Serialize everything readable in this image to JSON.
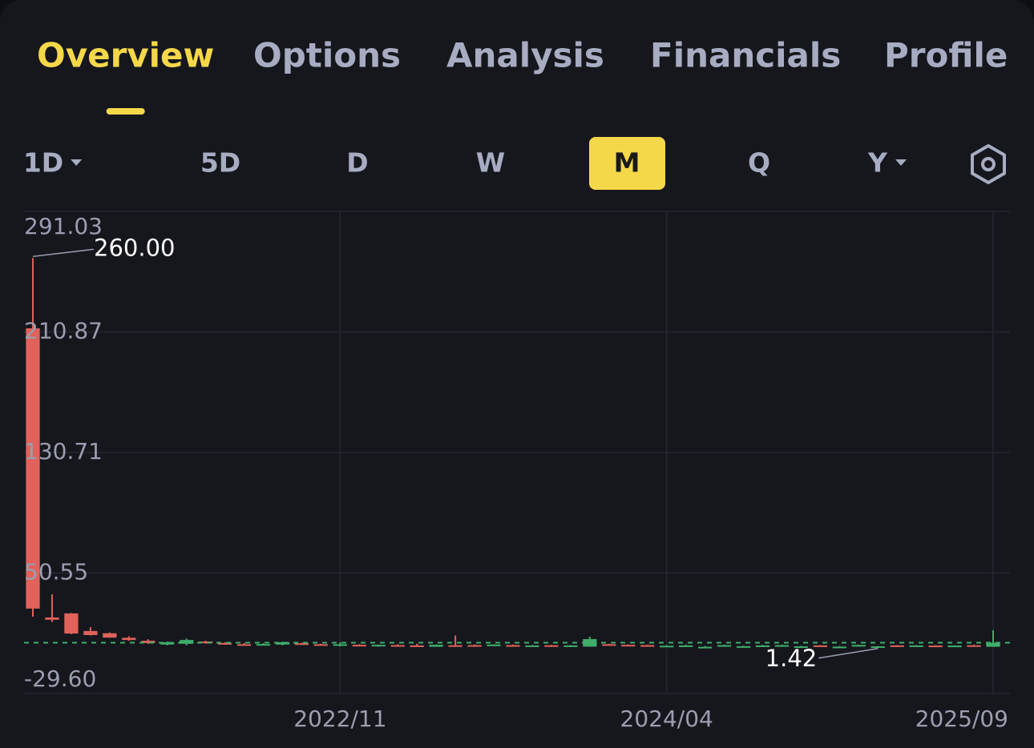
{
  "tabs": [
    "Overview",
    "Options",
    "Analysis",
    "Financials",
    "Profile"
  ],
  "active_tab": 0,
  "timeframes": [
    {
      "label": "1D",
      "dropdown": true
    },
    {
      "label": "5D",
      "dropdown": false
    },
    {
      "label": "D",
      "dropdown": false
    },
    {
      "label": "W",
      "dropdown": false
    },
    {
      "label": "M",
      "dropdown": false
    },
    {
      "label": "Q",
      "dropdown": false
    },
    {
      "label": "Y",
      "dropdown": true
    }
  ],
  "active_timeframe": 4,
  "chart_data": {
    "type": "candlestick",
    "categories": [
      null,
      null,
      null,
      null,
      null,
      null,
      null,
      null,
      null,
      null,
      null,
      null,
      null,
      null,
      null,
      null,
      "2022/11",
      null,
      null,
      null,
      null,
      null,
      null,
      null,
      null,
      null,
      null,
      null,
      null,
      null,
      null,
      null,
      null,
      "2024/04",
      null,
      null,
      null,
      null,
      null,
      null,
      null,
      null,
      null,
      null,
      null,
      null,
      null,
      null,
      null,
      null,
      "2025/09"
    ],
    "open": [
      213.3,
      21,
      23.7,
      12,
      10.5,
      7.5,
      5.5,
      3,
      3.5,
      5,
      4,
      3.2,
      3,
      3,
      3.8,
      3.2,
      2.2,
      2.8,
      1.8,
      2.6,
      2.4,
      1.5,
      2.5,
      2.6,
      2.2,
      2.6,
      1.8,
      2.5,
      1.6,
      1.6,
      3.2,
      2.8,
      2.6,
      1.6,
      2.4,
      1.5,
      2.6,
      1.7,
      2.4,
      2.6,
      1.6,
      2.4,
      1.6,
      2.5,
      1.5,
      2.4,
      1.7,
      2.3,
      1.5,
      2.5,
      1.5
    ],
    "high": [
      260,
      36.4,
      24,
      14.5,
      11,
      8.5,
      6.5,
      5,
      7,
      5.5,
      4.5,
      4,
      4,
      5,
      4.2,
      3.5,
      4.5,
      3.2,
      3,
      3.2,
      3.5,
      3,
      9,
      3,
      3.2,
      3,
      2.6,
      2.8,
      2.6,
      8.2,
      3.5,
      3,
      2.8,
      2.5,
      2.8,
      2,
      2.9,
      2.2,
      2.8,
      2.9,
      2.1,
      2.6,
      2,
      2.9,
      2,
      2.6,
      2.6,
      2.5,
      2.5,
      2.8,
      12.5
    ],
    "low": [
      21.5,
      18,
      9.9,
      9,
      7.5,
      5.5,
      3.5,
      2.5,
      2.5,
      3.5,
      3,
      2.5,
      2.5,
      2.5,
      2.8,
      2.6,
      1.8,
      2,
      1.6,
      2.2,
      1.9,
      1.5,
      2,
      2,
      2,
      1.7,
      1.7,
      1.5,
      1.5,
      1.5,
      2.6,
      2.4,
      1.5,
      1.5,
      2.2,
      1.45,
      2.4,
      1.6,
      2.2,
      2.4,
      1.5,
      2.1,
      1.5,
      2.4,
      1.42,
      2.2,
      1.6,
      1.8,
      1.45,
      2.3,
      1.45
    ],
    "close": [
      26.9,
      19.5,
      10.3,
      9.3,
      7.6,
      6,
      4,
      4.5,
      6,
      4,
      3.2,
      3,
      3.3,
      4.5,
      3.2,
      2.8,
      3.2,
      2.2,
      2.8,
      2.4,
      2,
      2.8,
      2.2,
      2.2,
      3,
      1.8,
      2.4,
      1.6,
      2.4,
      6.6,
      2.8,
      2.6,
      1.6,
      2.2,
      2.4,
      1.5,
      2.6,
      1.9,
      2.4,
      2.6,
      1.8,
      2.2,
      1.6,
      2.7,
      1.8,
      2.3,
      2.4,
      1.9,
      2.3,
      2.4,
      4.2
    ],
    "up_color": "#3fae6a",
    "down_color": "#e0625a",
    "ylim": [
      -29.6,
      291.03
    ],
    "yticks": [
      {
        "value": -29.6,
        "label": "-29.60"
      },
      50.55,
      130.71,
      210.87,
      291.03
    ],
    "grid": true,
    "high_annotation": {
      "value": 260,
      "label": "260.00"
    },
    "low_annotation": 1.42
  }
}
